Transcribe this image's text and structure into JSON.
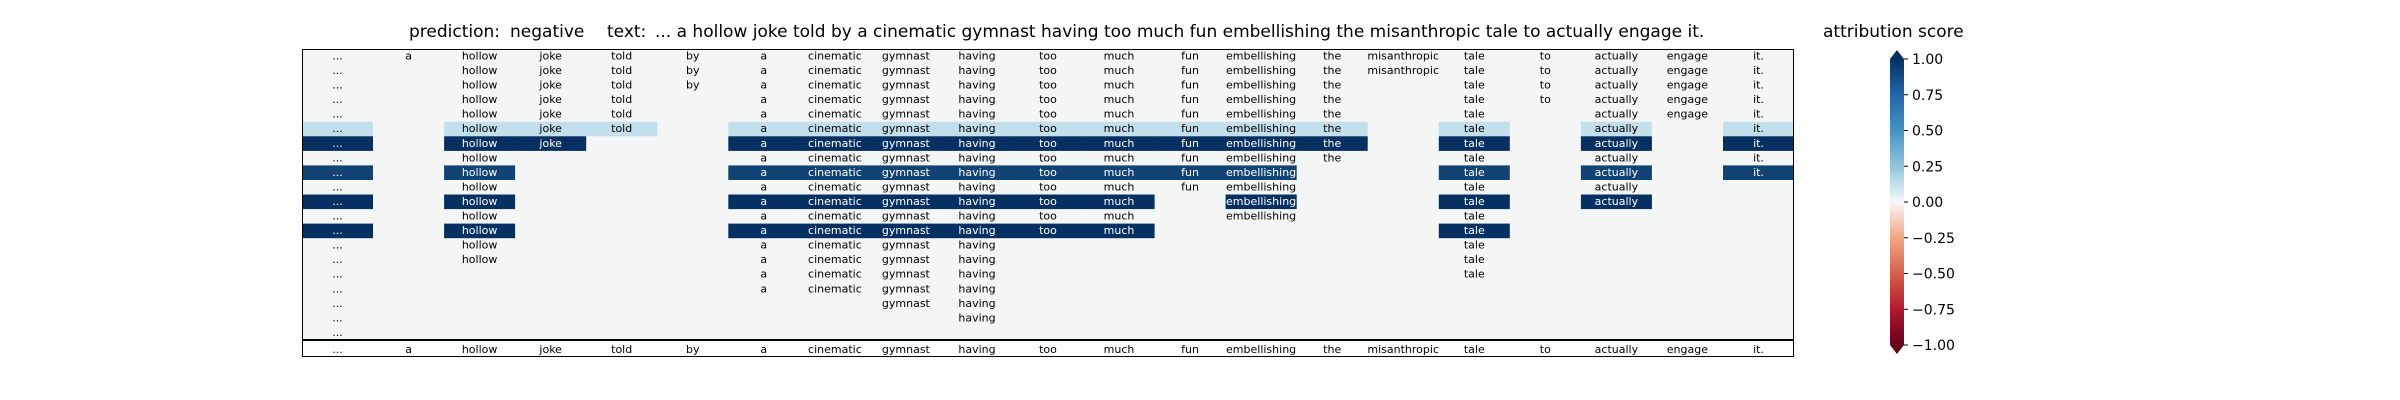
{
  "header": {
    "prediction_label": "prediction:",
    "prediction_value": "negative",
    "text_label": "text:",
    "text_value": "... a hollow joke told by a cinematic gymnast having too much fun embellishing the misanthropic tale to actually engage it."
  },
  "colorbar": {
    "title": "attribution score",
    "ticks": [
      "1.00",
      "0.75",
      "0.50",
      "0.25",
      "0.00",
      "−0.25",
      "−0.50",
      "−0.75",
      "−1.00"
    ],
    "tick_values": [
      1.0,
      0.75,
      0.5,
      0.25,
      0.0,
      -0.25,
      -0.5,
      -0.75,
      -1.0
    ],
    "colormap": "RdBu",
    "vmin": -1.0,
    "vmax": 1.0
  },
  "chart_data": {
    "type": "heatmap",
    "tokens": [
      "...",
      "a",
      "hollow",
      "joke",
      "told",
      "by",
      "a",
      "cinematic",
      "gymnast",
      "having",
      "too",
      "much",
      "fun",
      "embellishing",
      "the",
      "misanthropic",
      "tale",
      "to",
      "actually",
      "engage",
      "it."
    ],
    "present": [
      [
        1,
        1,
        1,
        1,
        1,
        1,
        1,
        1,
        1,
        1,
        1,
        1,
        1,
        1,
        1,
        1,
        1,
        1,
        1,
        1,
        1
      ],
      [
        1,
        0,
        1,
        1,
        1,
        1,
        1,
        1,
        1,
        1,
        1,
        1,
        1,
        1,
        1,
        1,
        1,
        1,
        1,
        1,
        1
      ],
      [
        1,
        0,
        1,
        1,
        1,
        1,
        1,
        1,
        1,
        1,
        1,
        1,
        1,
        1,
        1,
        0,
        1,
        1,
        1,
        1,
        1
      ],
      [
        1,
        0,
        1,
        1,
        1,
        0,
        1,
        1,
        1,
        1,
        1,
        1,
        1,
        1,
        1,
        0,
        1,
        1,
        1,
        1,
        1
      ],
      [
        1,
        0,
        1,
        1,
        1,
        0,
        1,
        1,
        1,
        1,
        1,
        1,
        1,
        1,
        1,
        0,
        1,
        0,
        1,
        1,
        1
      ],
      [
        1,
        0,
        1,
        1,
        1,
        0,
        1,
        1,
        1,
        1,
        1,
        1,
        1,
        1,
        1,
        0,
        1,
        0,
        1,
        0,
        1
      ],
      [
        1,
        0,
        1,
        1,
        0,
        0,
        1,
        1,
        1,
        1,
        1,
        1,
        1,
        1,
        1,
        0,
        1,
        0,
        1,
        0,
        1
      ],
      [
        1,
        0,
        1,
        0,
        0,
        0,
        1,
        1,
        1,
        1,
        1,
        1,
        1,
        1,
        1,
        0,
        1,
        0,
        1,
        0,
        1
      ],
      [
        1,
        0,
        1,
        0,
        0,
        0,
        1,
        1,
        1,
        1,
        1,
        1,
        1,
        1,
        0,
        0,
        1,
        0,
        1,
        0,
        1
      ],
      [
        1,
        0,
        1,
        0,
        0,
        0,
        1,
        1,
        1,
        1,
        1,
        1,
        1,
        1,
        0,
        0,
        1,
        0,
        1,
        0,
        0
      ],
      [
        1,
        0,
        1,
        0,
        0,
        0,
        1,
        1,
        1,
        1,
        1,
        1,
        0,
        1,
        0,
        0,
        1,
        0,
        1,
        0,
        0
      ],
      [
        1,
        0,
        1,
        0,
        0,
        0,
        1,
        1,
        1,
        1,
        1,
        1,
        0,
        1,
        0,
        0,
        1,
        0,
        0,
        0,
        0
      ],
      [
        1,
        0,
        1,
        0,
        0,
        0,
        1,
        1,
        1,
        1,
        1,
        1,
        0,
        0,
        0,
        0,
        1,
        0,
        0,
        0,
        0
      ],
      [
        1,
        0,
        1,
        0,
        0,
        0,
        1,
        1,
        1,
        1,
        0,
        0,
        0,
        0,
        0,
        0,
        1,
        0,
        0,
        0,
        0
      ],
      [
        1,
        0,
        1,
        0,
        0,
        0,
        1,
        1,
        1,
        1,
        0,
        0,
        0,
        0,
        0,
        0,
        1,
        0,
        0,
        0,
        0
      ],
      [
        1,
        0,
        0,
        0,
        0,
        0,
        1,
        1,
        1,
        1,
        0,
        0,
        0,
        0,
        0,
        0,
        1,
        0,
        0,
        0,
        0
      ],
      [
        1,
        0,
        0,
        0,
        0,
        0,
        1,
        1,
        1,
        1,
        0,
        0,
        0,
        0,
        0,
        0,
        0,
        0,
        0,
        0,
        0
      ],
      [
        1,
        0,
        0,
        0,
        0,
        0,
        0,
        0,
        1,
        1,
        0,
        0,
        0,
        0,
        0,
        0,
        0,
        0,
        0,
        0,
        0
      ],
      [
        1,
        0,
        0,
        0,
        0,
        0,
        0,
        0,
        0,
        1,
        0,
        0,
        0,
        0,
        0,
        0,
        0,
        0,
        0,
        0,
        0
      ],
      [
        1,
        0,
        0,
        0,
        0,
        0,
        0,
        0,
        0,
        0,
        0,
        0,
        0,
        0,
        0,
        0,
        0,
        0,
        0,
        0,
        0
      ]
    ],
    "scores": [
      [
        0.0,
        0.0,
        0.0,
        0.0,
        0.0,
        0.0,
        0.0,
        0.0,
        0.0,
        0.0,
        0.0,
        0.0,
        0.0,
        0.0,
        0.0,
        0.0,
        0.0,
        0.0,
        0.0,
        0.0,
        0.0
      ],
      [
        0.05,
        0.02,
        0.05,
        0.02,
        0.02,
        0.02,
        0.04,
        0.03,
        0.04,
        0.04,
        0.03,
        0.03,
        0.02,
        0.04,
        0.02,
        0.04,
        0.04,
        0.02,
        0.04,
        0.03,
        0.04
      ],
      [
        0.06,
        0.02,
        0.06,
        0.02,
        0.02,
        0.02,
        0.05,
        0.04,
        0.05,
        0.05,
        0.04,
        0.04,
        0.02,
        0.05,
        0.03,
        0.02,
        0.05,
        0.03,
        0.05,
        0.04,
        0.05
      ],
      [
        0.07,
        0.02,
        0.07,
        0.03,
        0.02,
        0.02,
        0.06,
        0.05,
        0.06,
        0.06,
        0.05,
        0.05,
        0.02,
        0.06,
        0.04,
        0.02,
        0.06,
        0.04,
        0.06,
        0.05,
        0.06
      ],
      [
        0.08,
        0.02,
        0.08,
        0.03,
        0.02,
        0.02,
        0.07,
        0.06,
        0.07,
        0.07,
        0.06,
        0.06,
        0.02,
        0.07,
        0.04,
        0.02,
        0.07,
        0.04,
        0.07,
        0.06,
        0.07
      ],
      [
        0.3,
        0.02,
        0.3,
        0.3,
        0.3,
        0.02,
        0.3,
        0.3,
        0.3,
        0.3,
        0.3,
        0.3,
        0.3,
        0.3,
        0.3,
        0.02,
        0.3,
        0.02,
        0.3,
        0.02,
        0.3
      ],
      [
        1.0,
        0.02,
        1.0,
        1.0,
        0.02,
        0.02,
        1.0,
        1.0,
        1.0,
        1.0,
        1.0,
        1.0,
        1.0,
        1.0,
        1.0,
        0.02,
        1.0,
        0.02,
        1.0,
        0.02,
        1.0
      ],
      [
        0.05,
        0.02,
        0.05,
        0.02,
        0.02,
        0.02,
        0.05,
        0.05,
        0.05,
        0.05,
        0.05,
        0.05,
        0.05,
        0.05,
        0.05,
        0.02,
        0.05,
        0.02,
        0.05,
        0.02,
        0.05
      ],
      [
        0.95,
        0.02,
        0.95,
        0.02,
        0.02,
        0.02,
        0.95,
        0.95,
        0.95,
        0.95,
        0.95,
        0.95,
        0.95,
        0.95,
        0.02,
        0.02,
        0.95,
        0.02,
        0.95,
        0.02,
        0.95
      ],
      [
        0.04,
        0.02,
        0.04,
        0.02,
        0.02,
        0.02,
        0.04,
        0.04,
        0.04,
        0.04,
        0.04,
        0.04,
        0.04,
        0.04,
        0.02,
        0.02,
        0.04,
        0.02,
        0.04,
        0.02,
        0.02
      ],
      [
        1.0,
        0.02,
        1.0,
        0.02,
        0.02,
        0.02,
        1.0,
        1.0,
        1.0,
        1.0,
        1.0,
        1.0,
        0.02,
        1.0,
        0.02,
        0.02,
        1.0,
        0.02,
        1.0,
        0.02,
        0.02
      ],
      [
        0.04,
        0.02,
        0.04,
        0.02,
        0.02,
        0.02,
        0.04,
        0.04,
        0.04,
        0.04,
        0.04,
        0.04,
        0.02,
        0.04,
        0.02,
        0.02,
        0.04,
        0.02,
        0.02,
        0.02,
        0.02
      ],
      [
        1.0,
        0.02,
        1.0,
        0.02,
        0.02,
        0.02,
        1.0,
        1.0,
        1.0,
        1.0,
        1.0,
        1.0,
        0.02,
        0.02,
        0.02,
        0.02,
        1.0,
        0.02,
        0.02,
        0.02,
        0.02
      ],
      [
        0.03,
        0.02,
        0.03,
        0.02,
        0.02,
        0.02,
        0.03,
        0.03,
        0.03,
        0.03,
        0.02,
        0.02,
        0.02,
        0.02,
        0.02,
        0.02,
        0.03,
        0.02,
        0.02,
        0.02,
        0.02
      ],
      [
        0.03,
        0.02,
        0.03,
        0.02,
        0.02,
        0.02,
        0.03,
        0.03,
        0.03,
        0.03,
        0.02,
        0.02,
        0.02,
        0.02,
        0.02,
        0.02,
        0.03,
        0.02,
        0.02,
        0.02,
        0.02
      ],
      [
        0.03,
        0.02,
        0.02,
        0.02,
        0.02,
        0.02,
        0.03,
        0.03,
        0.03,
        0.03,
        0.02,
        0.02,
        0.02,
        0.02,
        0.02,
        0.02,
        0.03,
        0.02,
        0.02,
        0.02,
        0.02
      ],
      [
        0.03,
        0.02,
        0.02,
        0.02,
        0.02,
        0.02,
        0.03,
        0.03,
        0.03,
        0.03,
        0.02,
        0.02,
        0.02,
        0.02,
        0.02,
        0.02,
        0.02,
        0.02,
        0.02,
        0.02,
        0.02
      ],
      [
        0.03,
        0.02,
        0.02,
        0.02,
        0.02,
        0.02,
        0.02,
        0.02,
        0.03,
        0.03,
        0.02,
        0.02,
        0.02,
        0.02,
        0.02,
        0.02,
        0.02,
        0.02,
        0.02,
        0.02,
        0.02
      ],
      [
        0.03,
        0.02,
        0.02,
        0.02,
        0.02,
        0.02,
        0.02,
        0.02,
        0.02,
        0.03,
        0.02,
        0.02,
        0.02,
        0.02,
        0.02,
        0.02,
        0.02,
        0.02,
        0.02,
        0.02,
        0.02
      ],
      [
        0.03,
        0.02,
        0.02,
        0.02,
        0.02,
        0.02,
        0.02,
        0.02,
        0.02,
        0.02,
        0.02,
        0.02,
        0.02,
        0.02,
        0.02,
        0.02,
        0.02,
        0.02,
        0.02,
        0.02,
        0.02
      ]
    ],
    "ylim": [
      -1.0,
      1.0
    ]
  }
}
